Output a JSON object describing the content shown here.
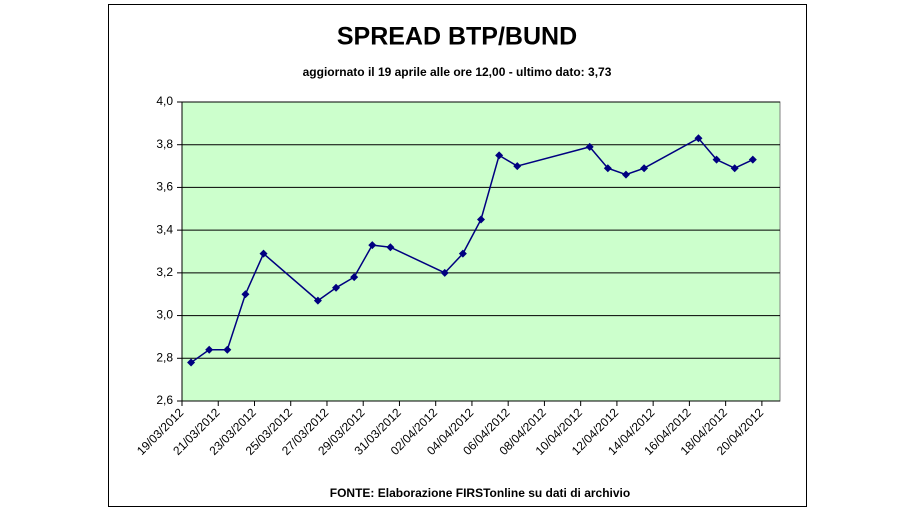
{
  "chart_data": {
    "type": "line",
    "title": "SPREAD BTP/BUND",
    "subtitle": "aggiornato il 19 aprile alle ore 12,00 - ultimo dato: 3,73",
    "source": "FONTE: Elaborazione FIRSTonline su dati di archivio",
    "x": [
      "19/03/2012",
      "20/03/2012",
      "21/03/2012",
      "22/03/2012",
      "23/03/2012",
      "26/03/2012",
      "27/03/2012",
      "28/03/2012",
      "29/03/2012",
      "30/03/2012",
      "02/04/2012",
      "03/04/2012",
      "04/04/2012",
      "05/04/2012",
      "06/04/2012",
      "10/04/2012",
      "11/04/2012",
      "12/04/2012",
      "13/04/2012",
      "16/04/2012",
      "17/04/2012",
      "18/04/2012",
      "19/04/2012"
    ],
    "values": [
      2.78,
      2.84,
      2.84,
      3.1,
      3.29,
      3.07,
      3.13,
      3.18,
      3.33,
      3.32,
      3.2,
      3.29,
      3.45,
      3.75,
      3.7,
      3.79,
      3.69,
      3.66,
      3.69,
      3.83,
      3.73,
      3.69,
      3.73
    ],
    "color": "#000080",
    "xlim": [
      "19/03/2012",
      "21/04/2012"
    ],
    "xticks": [
      "19/03/2012",
      "21/03/2012",
      "23/03/2012",
      "25/03/2012",
      "27/03/2012",
      "29/03/2012",
      "31/03/2012",
      "02/04/2012",
      "04/04/2012",
      "06/04/2012",
      "08/04/2012",
      "10/04/2012",
      "12/04/2012",
      "14/04/2012",
      "16/04/2012",
      "18/04/2012",
      "20/04/2012"
    ],
    "ylim": [
      2.6,
      4.0
    ],
    "yticks": [
      {
        "value": 2.6,
        "label": "2,6"
      },
      {
        "value": 2.8,
        "label": "2,8"
      },
      {
        "value": 3.0,
        "label": "3,0"
      },
      {
        "value": 3.2,
        "label": "3,2"
      },
      {
        "value": 3.4,
        "label": "3,4"
      },
      {
        "value": 3.6,
        "label": "3,6"
      },
      {
        "value": 3.8,
        "label": "3,8"
      },
      {
        "value": 4.0,
        "label": "4,0"
      }
    ],
    "grid": true,
    "plot_background": "#ccffcc"
  }
}
